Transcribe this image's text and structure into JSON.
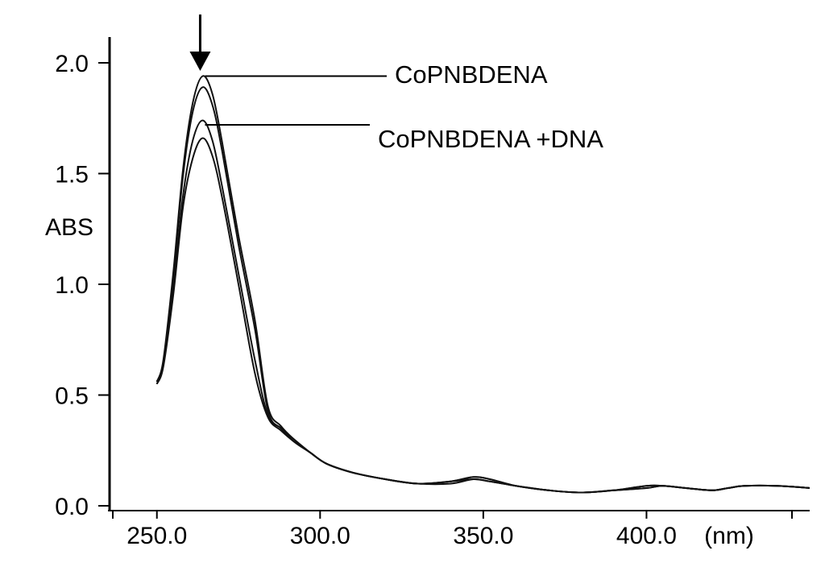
{
  "chart_data": {
    "type": "line",
    "title": "",
    "xlabel": "(nm)",
    "ylabel": "ABS",
    "xlim": [
      235.5,
      450
    ],
    "ylim": [
      0,
      2.0
    ],
    "x_ticks": [
      250.0,
      300.0,
      350.0,
      400.0
    ],
    "x_tick_labels": [
      "250.0",
      "300.0",
      "350.0",
      "400.0"
    ],
    "y_ticks": [
      0.0,
      0.5,
      1.0,
      1.5,
      2.0
    ],
    "y_tick_labels": [
      "0.0",
      "0.5",
      "1.0",
      "1.5",
      "2.0"
    ],
    "grid": false,
    "annotations": [
      {
        "text": "CoPNBDENA",
        "x": 264,
        "y": 1.94
      },
      {
        "text": "CoPNBDENA +DNA",
        "x": 264,
        "y": 1.72
      }
    ],
    "arrow": {
      "x": 264,
      "from_y": 2.2,
      "to_y": 1.99,
      "direction": "down"
    },
    "x": [
      250,
      252,
      255,
      258,
      261,
      264,
      267,
      270,
      275,
      280,
      284,
      288,
      292,
      297,
      302,
      310,
      320,
      330,
      340,
      347,
      352,
      360,
      370,
      380,
      390,
      400,
      405,
      412,
      420,
      425,
      430,
      440,
      450
    ],
    "series": [
      {
        "values": [
          0.56,
          0.66,
          1.05,
          1.52,
          1.82,
          1.94,
          1.86,
          1.64,
          1.22,
          0.84,
          0.45,
          0.36,
          0.3,
          0.24,
          0.19,
          0.15,
          0.12,
          0.1,
          0.11,
          0.13,
          0.12,
          0.09,
          0.07,
          0.06,
          0.07,
          0.09,
          0.09,
          0.08,
          0.07,
          0.08,
          0.09,
          0.09,
          0.08
        ]
      },
      {
        "values": [
          0.56,
          0.65,
          1.03,
          1.49,
          1.78,
          1.89,
          1.81,
          1.6,
          1.18,
          0.8,
          0.43,
          0.35,
          0.3,
          0.24,
          0.19,
          0.15,
          0.12,
          0.1,
          0.11,
          0.13,
          0.12,
          0.09,
          0.07,
          0.06,
          0.07,
          0.09,
          0.09,
          0.08,
          0.07,
          0.08,
          0.09,
          0.09,
          0.08
        ]
      },
      {
        "values": [
          0.55,
          0.64,
          0.98,
          1.4,
          1.65,
          1.74,
          1.65,
          1.44,
          1.05,
          0.66,
          0.41,
          0.35,
          0.29,
          0.24,
          0.19,
          0.15,
          0.12,
          0.1,
          0.11,
          0.12,
          0.11,
          0.09,
          0.07,
          0.06,
          0.07,
          0.08,
          0.09,
          0.08,
          0.07,
          0.08,
          0.09,
          0.09,
          0.08
        ]
      },
      {
        "values": [
          0.55,
          0.63,
          0.95,
          1.35,
          1.57,
          1.66,
          1.58,
          1.39,
          1.0,
          0.6,
          0.4,
          0.34,
          0.29,
          0.24,
          0.19,
          0.15,
          0.12,
          0.1,
          0.1,
          0.12,
          0.11,
          0.09,
          0.07,
          0.06,
          0.07,
          0.08,
          0.09,
          0.08,
          0.07,
          0.08,
          0.09,
          0.09,
          0.08
        ]
      }
    ]
  }
}
